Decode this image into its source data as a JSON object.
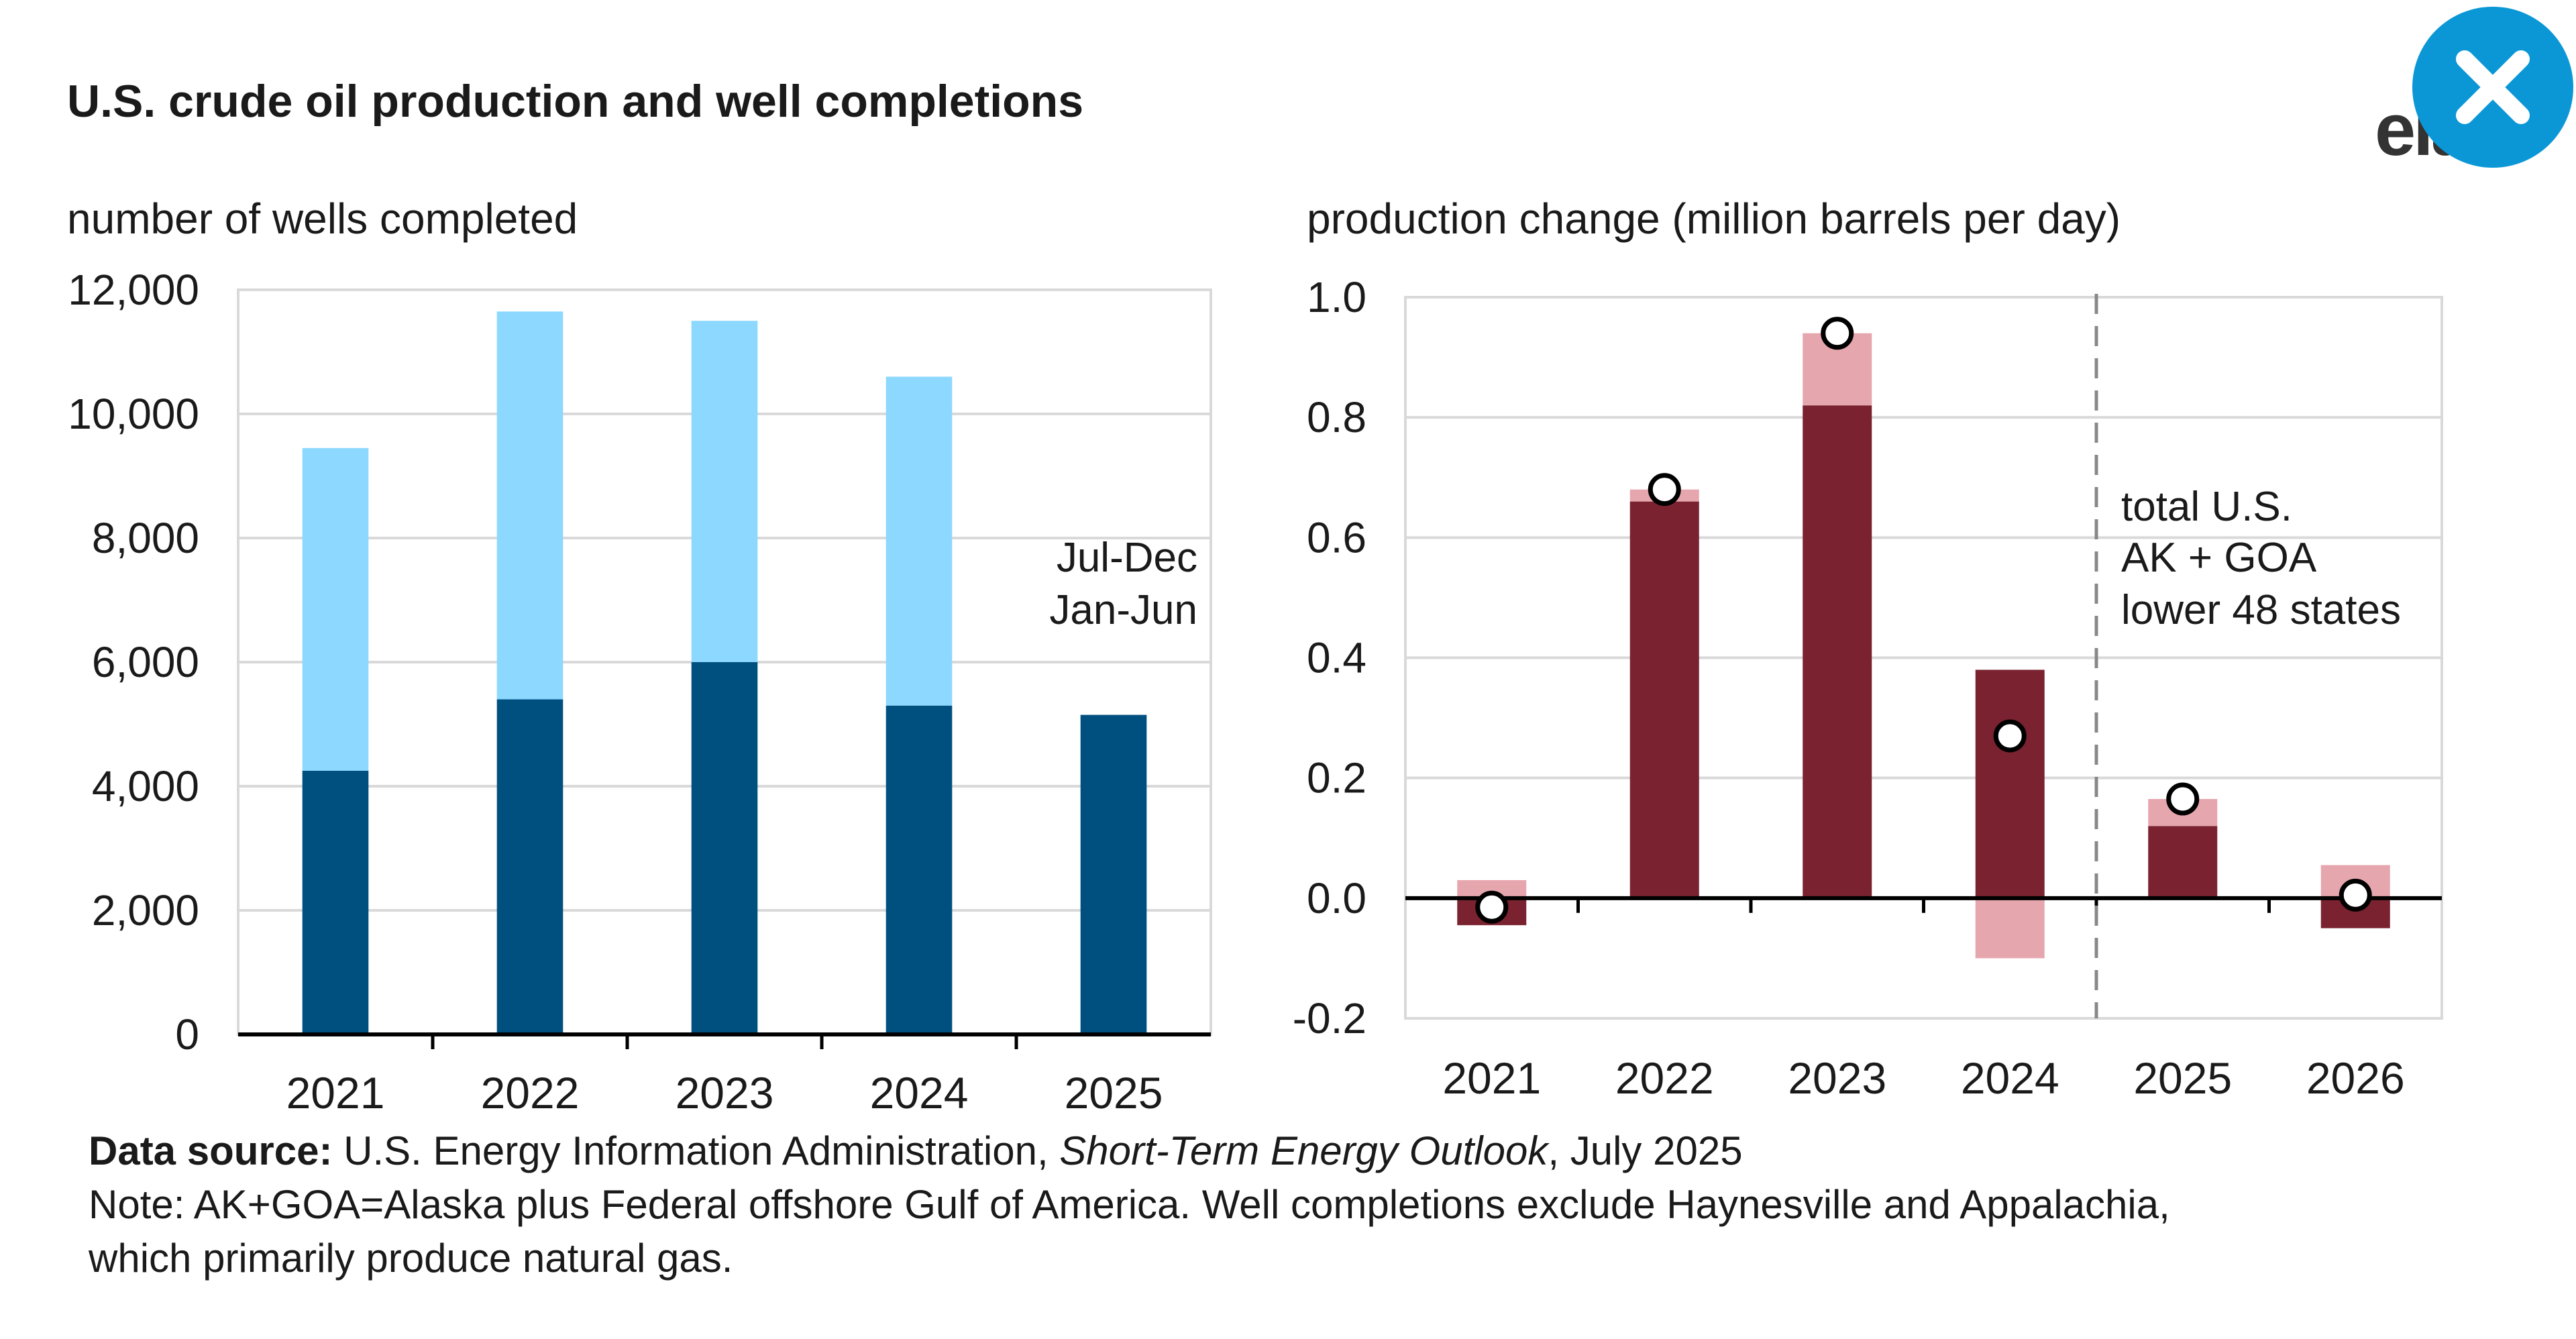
{
  "header": {
    "title": "U.S. crude oil production and well completions",
    "logo_text": "eia"
  },
  "close_button": {
    "icon": "close-icon",
    "color": "#0b97d6"
  },
  "colors": {
    "jan_jun": "#00507f",
    "jul_dec": "#8cd8ff",
    "lower48": "#7a2230",
    "akgoa": "#e6a6ae",
    "grid": "#d9d9d9"
  },
  "chart_data": [
    {
      "type": "bar",
      "stacked": true,
      "ylabel": "number of wells completed",
      "ylim": [
        0,
        12000
      ],
      "yticks": [
        "0",
        "2,000",
        "4,000",
        "6,000",
        "8,000",
        "10,000",
        "12,000"
      ],
      "categories": [
        "2021",
        "2022",
        "2023",
        "2024",
        "2025"
      ],
      "series": [
        {
          "name": "Jan-Jun",
          "values": [
            4250,
            5400,
            6000,
            5300,
            5150
          ]
        },
        {
          "name": "Jul-Dec",
          "values": [
            5200,
            6250,
            5500,
            5300,
            0
          ]
        }
      ],
      "legend": [
        "Jul-Dec",
        "Jan-Jun"
      ],
      "legend_position": "right"
    },
    {
      "type": "bar",
      "stacked": true,
      "ylabel": "production change (million barrels per day)",
      "ylim": [
        -0.2,
        1.0
      ],
      "yticks": [
        "-0.2",
        "0.0",
        "0.2",
        "0.4",
        "0.6",
        "0.8",
        "1.0"
      ],
      "categories": [
        "2021",
        "2022",
        "2023",
        "2024",
        "2025",
        "2026"
      ],
      "series": [
        {
          "name": "lower 48 states",
          "values": [
            -0.045,
            0.66,
            0.82,
            0.38,
            0.12,
            -0.05
          ]
        },
        {
          "name": "AK + GOA",
          "values": [
            0.03,
            0.02,
            0.12,
            -0.1,
            0.045,
            0.055
          ]
        }
      ],
      "total": {
        "name": "total U.S.",
        "values": [
          -0.015,
          0.68,
          0.94,
          0.27,
          0.165,
          0.005
        ]
      },
      "forecast_starts_after": "2024",
      "legend": [
        "total U.S.",
        "AK + GOA",
        "lower 48 states"
      ],
      "legend_position": "right"
    }
  ],
  "footnote": {
    "source_label": "Data source:",
    "source_text_1": " U.S. Energy Information Administration, ",
    "source_italic": "Short-Term Energy Outlook",
    "source_text_2": ", July 2025",
    "note_line_1": "Note: AK+GOA=Alaska plus Federal offshore Gulf of America. Well completions exclude Haynesville and Appalachia,",
    "note_line_2": "which primarily produce natural gas."
  }
}
